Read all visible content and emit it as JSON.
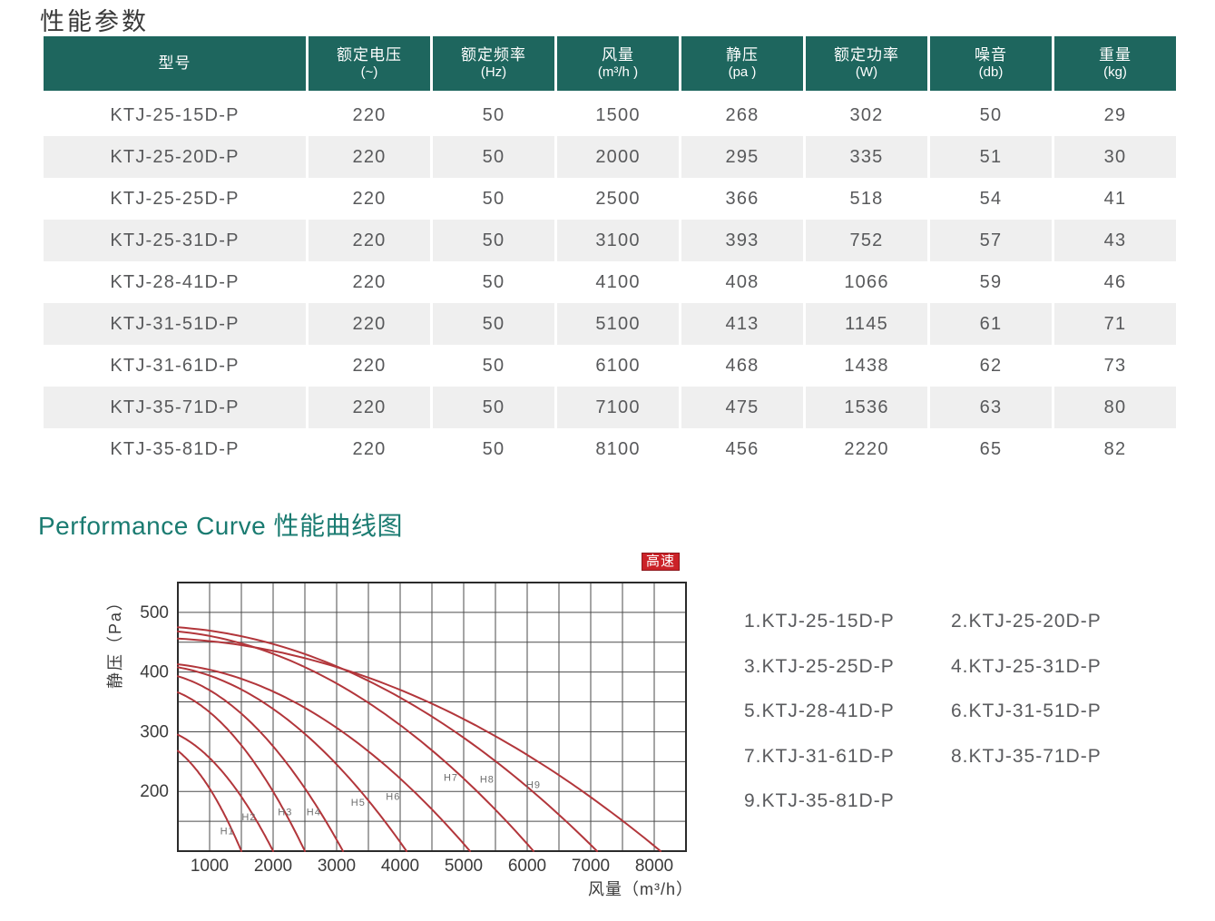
{
  "page": {
    "title": "性能参数"
  },
  "colors": {
    "header_teal": "#1e665e",
    "heading_teal": "#1a7b71",
    "row_alt_gray": "#efefef",
    "cell_text": "#58595b",
    "curve_red": "#b2363b",
    "grid_line": "#4b4b4b",
    "plot_border": "#2b2b2b",
    "badge_bg": "#cb2228",
    "badge_text": "#ffffff"
  },
  "table": {
    "columns": [
      {
        "line1": "型号",
        "line2": ""
      },
      {
        "line1": "额定电压",
        "line2": "(~)"
      },
      {
        "line1": "额定频率",
        "line2": "(Hz)"
      },
      {
        "line1": "风量",
        "line2": "(m³/h )"
      },
      {
        "line1": "静压",
        "line2": "(pa )"
      },
      {
        "line1": "额定功率",
        "line2": "(W)"
      },
      {
        "line1": "噪音",
        "line2": "(db)"
      },
      {
        "line1": "重量",
        "line2": "(kg)"
      }
    ],
    "rows": [
      [
        "KTJ-25-15D-P",
        "220",
        "50",
        "1500",
        "268",
        "302",
        "50",
        "29"
      ],
      [
        "KTJ-25-20D-P",
        "220",
        "50",
        "2000",
        "295",
        "335",
        "51",
        "30"
      ],
      [
        "KTJ-25-25D-P",
        "220",
        "50",
        "2500",
        "366",
        "518",
        "54",
        "41"
      ],
      [
        "KTJ-25-31D-P",
        "220",
        "50",
        "3100",
        "393",
        "752",
        "57",
        "43"
      ],
      [
        "KTJ-28-41D-P",
        "220",
        "50",
        "4100",
        "408",
        "1066",
        "59",
        "46"
      ],
      [
        "KTJ-31-51D-P",
        "220",
        "50",
        "5100",
        "413",
        "1145",
        "61",
        "71"
      ],
      [
        "KTJ-31-61D-P",
        "220",
        "50",
        "6100",
        "468",
        "1438",
        "62",
        "73"
      ],
      [
        "KTJ-35-71D-P",
        "220",
        "50",
        "7100",
        "475",
        "1536",
        "63",
        "80"
      ],
      [
        "KTJ-35-81D-P",
        "220",
        "50",
        "8100",
        "456",
        "2220",
        "65",
        "82"
      ]
    ]
  },
  "sections": {
    "curve_heading": "Performance Curve 性能曲线图"
  },
  "chart": {
    "badge": "高速"
  },
  "chart_data": {
    "type": "line",
    "title": "Performance Curve 性能曲线图",
    "xlabel": "风量（m³/h）",
    "ylabel": "静压（Pa）",
    "xlim": [
      500,
      8500
    ],
    "ylim": [
      100,
      550
    ],
    "x_ticks": [
      1000,
      2000,
      3000,
      4000,
      5000,
      6000,
      7000,
      8000
    ],
    "y_ticks": [
      200,
      300,
      400,
      500
    ],
    "x_grid_step": 500,
    "y_grid_step": 50,
    "grid": true,
    "legend_position": "right",
    "series": [
      {
        "label": "H1",
        "model": "KTJ-25-15D-P",
        "max_static_pa": 268,
        "max_flow_m3h": 1500,
        "label_at": {
          "x": 1280,
          "y": 128
        }
      },
      {
        "label": "H2",
        "model": "KTJ-25-20D-P",
        "max_static_pa": 295,
        "max_flow_m3h": 2000,
        "label_at": {
          "x": 1620,
          "y": 152
        }
      },
      {
        "label": "H3",
        "model": "KTJ-25-25D-P",
        "max_static_pa": 366,
        "max_flow_m3h": 2500,
        "label_at": {
          "x": 2190,
          "y": 160
        }
      },
      {
        "label": "H4",
        "model": "KTJ-25-31D-P",
        "max_static_pa": 393,
        "max_flow_m3h": 3100,
        "label_at": {
          "x": 2640,
          "y": 160
        }
      },
      {
        "label": "H5",
        "model": "KTJ-28-41D-P",
        "max_static_pa": 408,
        "max_flow_m3h": 4100,
        "label_at": {
          "x": 3340,
          "y": 176
        }
      },
      {
        "label": "H6",
        "model": "KTJ-31-51D-P",
        "max_static_pa": 413,
        "max_flow_m3h": 5100,
        "label_at": {
          "x": 3890,
          "y": 186
        }
      },
      {
        "label": "H7",
        "model": "KTJ-31-61D-P",
        "max_static_pa": 468,
        "max_flow_m3h": 6100,
        "label_at": {
          "x": 4800,
          "y": 218
        }
      },
      {
        "label": "H8",
        "model": "KTJ-35-71D-P",
        "max_static_pa": 475,
        "max_flow_m3h": 7100,
        "label_at": {
          "x": 5370,
          "y": 215
        }
      },
      {
        "label": "H9",
        "model": "KTJ-35-81D-P",
        "max_static_pa": 456,
        "max_flow_m3h": 8100,
        "label_at": {
          "x": 6100,
          "y": 206
        }
      }
    ],
    "curve_shape_note": "each curve runs from (500, max_static_pa) down to (max_flow_m3h, 100) along a fan parabola"
  },
  "legend": {
    "items": [
      "1.KTJ-25-15D-P",
      "2.KTJ-25-20D-P",
      "3.KTJ-25-25D-P",
      "4.KTJ-25-31D-P",
      "5.KTJ-28-41D-P",
      "6.KTJ-31-51D-P",
      "7.KTJ-31-61D-P",
      "8.KTJ-35-71D-P",
      "9.KTJ-35-81D-P"
    ]
  }
}
